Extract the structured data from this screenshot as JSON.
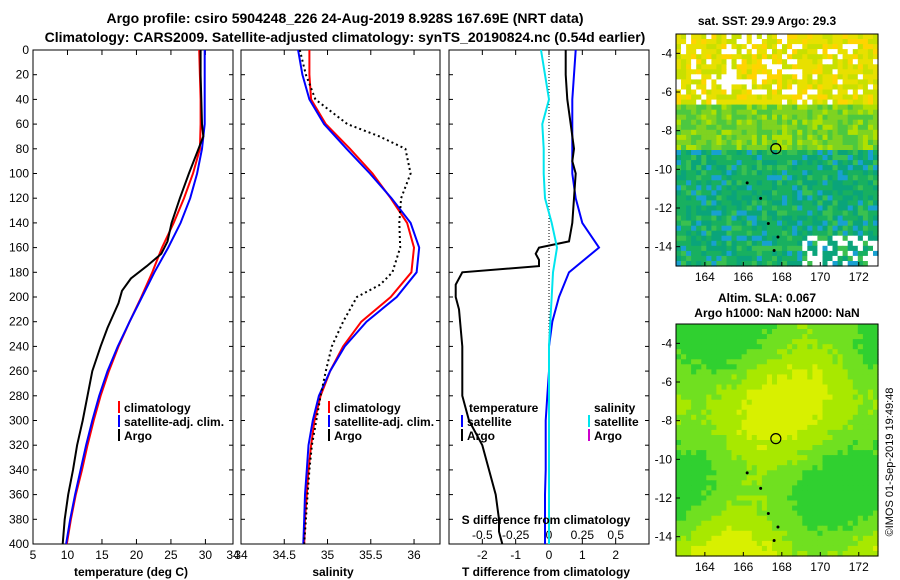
{
  "title_line1": "Argo profile: csiro 5904248_226 24-Aug-2019 8.928S 167.69E (NRT data)",
  "title_line2": "Climatology: CARS2009. Satellite-adjusted climatology: synTS_20190824.nc (0.54d earlier)",
  "watermark": "©IMOS 01-Sep-2019 19:49:48",
  "colors": {
    "climatology": "#ff0000",
    "satellite": "#0000ff",
    "argo": "#000000",
    "sat_salinity": "#00e5ee",
    "argo_salinity": "#cc00cc"
  },
  "chart_data": [
    {
      "type": "line",
      "id": "temperature",
      "xlabel": "temperature (deg C)",
      "ylabel": "depth",
      "xlim": [
        5,
        34
      ],
      "ylim": [
        400,
        0
      ],
      "xticks": [
        "5",
        "10",
        "15",
        "20",
        "25",
        "30",
        "34"
      ],
      "yticks": [
        "0",
        "20",
        "40",
        "60",
        "80",
        "100",
        "120",
        "140",
        "160",
        "180",
        "200",
        "220",
        "240",
        "260",
        "280",
        "300",
        "320",
        "340",
        "360",
        "380",
        "400"
      ],
      "legend": [
        "climatology",
        "satellite-adj. clim.",
        "Argo"
      ],
      "series": [
        {
          "name": "climatology",
          "depth": [
            0,
            20,
            40,
            60,
            80,
            100,
            120,
            140,
            160,
            180,
            200,
            220,
            240,
            260,
            280,
            300,
            320,
            340,
            360,
            380,
            400
          ],
          "values": [
            29.1,
            29.2,
            29.3,
            29.3,
            29.2,
            28.2,
            26.9,
            25.4,
            23.7,
            22.3,
            20.7,
            19.0,
            17.4,
            16.0,
            14.8,
            13.8,
            12.9,
            12.1,
            11.2,
            10.5,
            9.9
          ]
        },
        {
          "name": "satellite-adj. clim.",
          "depth": [
            0,
            20,
            40,
            60,
            80,
            100,
            120,
            140,
            160,
            180,
            200,
            220,
            240,
            260,
            280,
            300,
            320,
            340,
            360,
            380,
            400
          ],
          "values": [
            29.9,
            29.9,
            29.9,
            29.9,
            29.5,
            28.8,
            27.8,
            26.4,
            24.6,
            22.6,
            20.8,
            19.0,
            17.3,
            15.8,
            14.6,
            13.6,
            12.7,
            11.9,
            11.1,
            10.4,
            9.8
          ]
        },
        {
          "name": "Argo",
          "depth": [
            0,
            20,
            40,
            60,
            70,
            80,
            100,
            120,
            140,
            155,
            165,
            175,
            185,
            195,
            205,
            215,
            225,
            240,
            260,
            280,
            300,
            320,
            340,
            360,
            380,
            400
          ],
          "values": [
            29.3,
            29.3,
            29.4,
            29.5,
            29.7,
            29.0,
            27.6,
            26.3,
            25.1,
            24.5,
            23.6,
            21.5,
            19.2,
            17.9,
            17.4,
            16.6,
            15.8,
            14.8,
            13.6,
            12.9,
            12.2,
            11.4,
            10.8,
            10.1,
            9.6,
            9.3
          ]
        }
      ]
    },
    {
      "type": "line",
      "id": "salinity",
      "xlabel": "salinity",
      "xlim": [
        34,
        36.3
      ],
      "ylim": [
        400,
        0
      ],
      "xticks": [
        "34",
        "34.5",
        "35",
        "35.5",
        "36"
      ],
      "legend": [
        "climatology",
        "satellite-adj. clim.",
        "Argo"
      ],
      "series": [
        {
          "name": "climatology",
          "depth": [
            0,
            20,
            40,
            60,
            80,
            100,
            120,
            140,
            160,
            180,
            200,
            220,
            240,
            260,
            280,
            300,
            320,
            340,
            360,
            380,
            400
          ],
          "values": [
            34.79,
            34.79,
            34.81,
            34.98,
            35.26,
            35.52,
            35.73,
            35.92,
            36.0,
            35.97,
            35.73,
            35.39,
            35.18,
            35.03,
            34.92,
            34.85,
            34.81,
            34.78,
            34.76,
            34.74,
            34.73
          ]
        },
        {
          "name": "satellite-adj. clim.",
          "depth": [
            0,
            20,
            40,
            60,
            80,
            100,
            120,
            140,
            160,
            180,
            200,
            220,
            240,
            260,
            280,
            300,
            320,
            340,
            360,
            380,
            400
          ],
          "values": [
            34.66,
            34.71,
            34.79,
            34.96,
            35.22,
            35.49,
            35.74,
            35.96,
            36.06,
            36.03,
            35.8,
            35.45,
            35.2,
            35.03,
            34.9,
            34.83,
            34.78,
            34.76,
            34.74,
            34.73,
            34.72
          ]
        },
        {
          "name": "Argo",
          "depth": [
            0,
            20,
            40,
            60,
            70,
            80,
            100,
            120,
            140,
            160,
            180,
            190,
            200,
            220,
            240,
            260,
            280,
            300,
            320,
            340,
            360,
            380,
            400
          ],
          "values": [
            34.68,
            34.75,
            34.86,
            35.23,
            35.6,
            35.9,
            35.96,
            35.85,
            35.83,
            35.84,
            35.75,
            35.61,
            35.34,
            35.18,
            35.05,
            34.98,
            34.92,
            34.87,
            34.82,
            34.79,
            34.77,
            34.75,
            34.73
          ]
        }
      ]
    },
    {
      "type": "line",
      "id": "difference",
      "xlabel": "T difference from climatology",
      "top_axis_label": "S difference from climatology",
      "xlim": [
        -3,
        3
      ],
      "xticks": [
        "-2",
        "-1",
        "0",
        "1",
        "2"
      ],
      "top_xticks": [
        "-0.5",
        "-0.25",
        "0",
        "0.25",
        "0.5"
      ],
      "ylim": [
        400,
        0
      ],
      "legend_temperature_title": "temperature",
      "legend_salinity_title": "salinity",
      "legend_temperature": [
        "satellite",
        "Argo"
      ],
      "legend_salinity": [
        "satellite",
        "Argo"
      ],
      "series": [
        {
          "name": "T satellite",
          "depth": [
            0,
            20,
            40,
            60,
            80,
            100,
            120,
            140,
            160,
            180,
            200,
            220,
            240,
            260,
            280,
            300,
            320,
            340,
            360,
            380,
            400
          ],
          "values": [
            0.8,
            0.75,
            0.7,
            0.7,
            0.7,
            0.7,
            0.8,
            1.0,
            1.5,
            0.6,
            0.3,
            0.1,
            0,
            0,
            -0.05,
            -0.1,
            -0.1,
            -0.1,
            -0.12,
            -0.12,
            -0.12
          ]
        },
        {
          "name": "T Argo",
          "depth": [
            0,
            20,
            40,
            60,
            80,
            90,
            100,
            120,
            140,
            155,
            160,
            165,
            170,
            175,
            180,
            190,
            200,
            210,
            240,
            280,
            300,
            320,
            340,
            360,
            380,
            390,
            400
          ],
          "values": [
            0.5,
            0.5,
            0.55,
            0.65,
            0.75,
            0.7,
            0.8,
            0.75,
            0.7,
            0.6,
            -0.3,
            -0.4,
            -0.3,
            -0.3,
            -2.6,
            -2.8,
            -2.8,
            -2.7,
            -2.6,
            -2.6,
            -2.4,
            -2.0,
            -1.8,
            -1.6,
            -1.5,
            -1.5,
            -1.4
          ]
        },
        {
          "name": "S satellite",
          "depth": [
            0,
            20,
            40,
            60,
            80,
            100,
            120,
            140,
            160,
            180,
            200,
            220,
            240,
            260,
            280,
            300,
            320,
            340,
            360,
            380,
            400
          ],
          "values": [
            -0.06,
            -0.03,
            0.0,
            -0.05,
            -0.04,
            -0.04,
            -0.03,
            0.02,
            0.06,
            0.03,
            0.02,
            0.01,
            0,
            0,
            0,
            0,
            0,
            0,
            0,
            0,
            0
          ]
        }
      ]
    },
    {
      "type": "heatmap",
      "id": "sst_map",
      "title": "sat. SST: 29.9 Argo: 29.3",
      "xlim": [
        162.5,
        173
      ],
      "ylim": [
        -15,
        -3
      ],
      "xticks": [
        "164",
        "166",
        "168",
        "170",
        "172"
      ],
      "yticks": [
        "-4",
        "-6",
        "-8",
        "-10",
        "-12",
        "-14"
      ],
      "marker": {
        "lon": 167.69,
        "lat": -8.928
      }
    },
    {
      "type": "heatmap",
      "id": "sla_map",
      "title_line1": "Altim. SLA: 0.067",
      "title_line2": "Argo h1000: NaN h2000: NaN",
      "xlim": [
        162.5,
        173
      ],
      "ylim": [
        -15,
        -3
      ],
      "xticks": [
        "164",
        "166",
        "168",
        "170",
        "172"
      ],
      "yticks": [
        "-4",
        "-6",
        "-8",
        "-10",
        "-12",
        "-14"
      ],
      "marker": {
        "lon": 167.69,
        "lat": -8.928
      }
    }
  ]
}
